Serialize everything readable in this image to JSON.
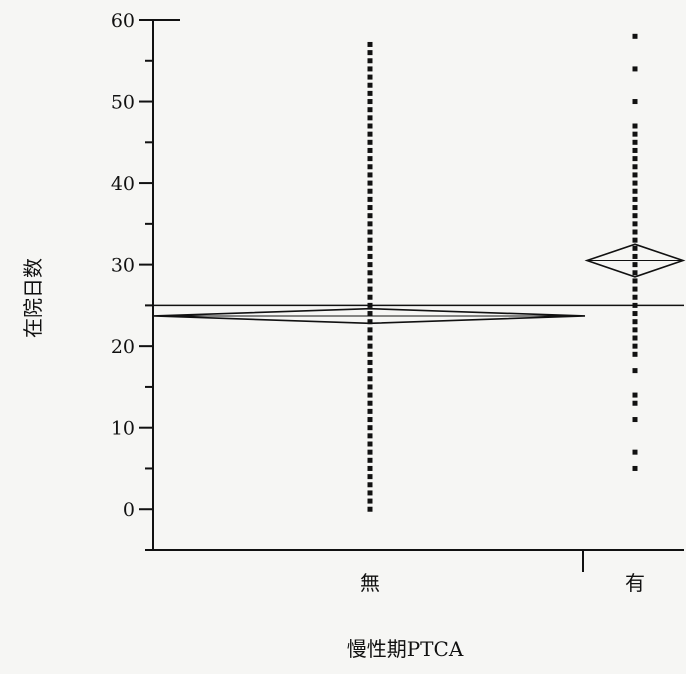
{
  "chart_data": {
    "type": "scatter",
    "xlabel": "慢性期PTCA",
    "ylabel": "在院日数",
    "ylim": [
      -5,
      60
    ],
    "yticks": [
      0,
      10,
      20,
      30,
      40,
      50,
      60
    ],
    "categories": [
      "無",
      "有"
    ],
    "grand_mean": 25,
    "groups": [
      {
        "category": "無",
        "mean": 23.7,
        "ci": [
          22.8,
          24.6
        ],
        "values": [
          0,
          1,
          2,
          3,
          4,
          5,
          6,
          7,
          8,
          9,
          10,
          11,
          12,
          13,
          14,
          15,
          16,
          17,
          18,
          19,
          20,
          21,
          22,
          23,
          24,
          25,
          26,
          27,
          28,
          29,
          30,
          31,
          32,
          33,
          34,
          35,
          36,
          37,
          38,
          39,
          40,
          41,
          42,
          43,
          44,
          45,
          46,
          47,
          48,
          49,
          50,
          51,
          52,
          53,
          54,
          55,
          56,
          57
        ]
      },
      {
        "category": "有",
        "mean": 30.5,
        "ci": [
          28.5,
          32.5
        ],
        "values": [
          5,
          7,
          11,
          13,
          14,
          17,
          19,
          20,
          21,
          22,
          23,
          24,
          25,
          26,
          27,
          28,
          29,
          30,
          31,
          32,
          33,
          34,
          35,
          36,
          37,
          38,
          39,
          40,
          41,
          42,
          43,
          44,
          45,
          46,
          47,
          50,
          54,
          58
        ]
      }
    ],
    "grid": false
  }
}
